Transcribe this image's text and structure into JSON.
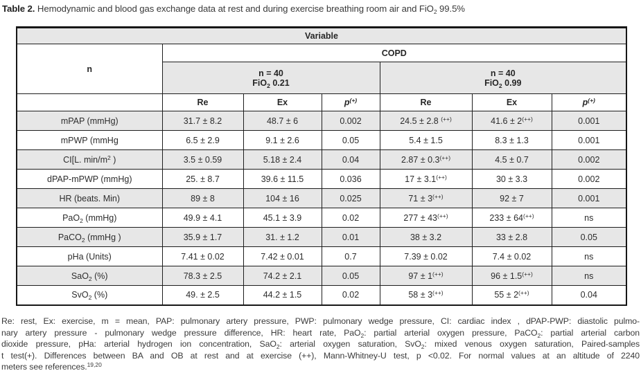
{
  "caption": {
    "label": "Table 2.",
    "text": "Hemodynamic and blood gas exchange data at rest and during exercise breathing room air and FiO~2~ 99.5%"
  },
  "table": {
    "variable_header": "Variable",
    "n_label": "n",
    "group_header": "COPD",
    "subgroups": [
      {
        "line1": "n = 40",
        "line2": "FiO~2~ 0.21"
      },
      {
        "line1": "n = 40",
        "line2": "FiO~2~ 0.99"
      }
    ],
    "col_headers": [
      "Re",
      "Ex",
      "p^(+)^",
      "Re",
      "Ex",
      "p^(+)^"
    ],
    "rows": [
      {
        "label": "mPAP (mmHg)",
        "cells": [
          "31.7 ± 8.2",
          "48.7 ± 6",
          "0.002",
          "24.5 ± 2.8 ^(++)^",
          "41.6 ± 2^(++)^",
          "0.001"
        ]
      },
      {
        "label": "mPWP (mmHg",
        "cells": [
          "6.5 ± 2.9",
          "9.1 ± 2.6",
          "0.05",
          "5.4 ± 1.5",
          "8.3 ± 1.3",
          "0.001"
        ]
      },
      {
        "label": "CI[L. min/m^2^ )",
        "cells": [
          "3.5 ± 0.59",
          "5.18 ± 2.4",
          "0.04",
          "2.87 ± 0.3^(++)^",
          "4.5 ± 0.7",
          "0.002"
        ]
      },
      {
        "label": "dPAP-mPWP (mmHg)",
        "cells": [
          "25. ± 8.7",
          "39.6 ± 11.5",
          "0.036",
          "17 ± 3.1^(++)^",
          "30 ± 3.3",
          "0.002"
        ]
      },
      {
        "label": "HR (beats. Min)",
        "cells": [
          "89 ± 8",
          "104 ± 16",
          "0.025",
          "71 ± 3^(++)^",
          "92 ± 7",
          "0.001"
        ]
      },
      {
        "label": "PaO~2~ (mmHg)",
        "cells": [
          "49.9 ± 4.1",
          "45.1 ± 3.9",
          "0.02",
          "277 ± 43^(++)^",
          "233 ± 64^(++)^",
          "ns"
        ]
      },
      {
        "label": "PaCO~2~ (mmHg )",
        "cells": [
          "35.9 ± 1.7",
          "31. ± 1.2",
          "0.01",
          "38 ± 3.2",
          "33 ± 2.8",
          "0.05"
        ]
      },
      {
        "label": "pHa (Units)",
        "cells": [
          "7.41 ± 0.02",
          "7.42 ± 0.01",
          "0.7",
          "7.39 ± 0.02",
          "7.4 ± 0.02",
          "ns"
        ]
      },
      {
        "label": "SaO~2~ (%)",
        "cells": [
          "78.3 ± 2.5",
          "74.2 ± 2.1",
          "0.05",
          "97 ± 1^(++)^",
          "96 ± 1.5^(++)^",
          "ns"
        ]
      },
      {
        "label": "SvO~2~ (%)",
        "cells": [
          "49. ± 2.5",
          "44.2 ± 1.5",
          "0.02",
          "58 ± 3^(++)^",
          "55 ± 2^(++)^",
          "0.04"
        ]
      }
    ]
  },
  "footnote": {
    "lines": [
      "Re: rest, Ex: exercise, m = mean, PAP: pulmonary artery pressure, PWP: pulmonary wedge pressure, CI: cardiac index , dPAP-PWP: diastolic pulmo-",
      "nary artery pressure - pulmonary wedge pressure difference, HR: heart rate, PaO~2~: partial arterial oxygen pressure, PaCO~2~: partial arterial carbon",
      "dioxide pressure, pHa: arterial hydrogen ion concentration, SaO~2~: arterial oxygen saturation, SvO~2~: mixed venous oxygen saturation, Paired-samples",
      "t test(+). Differences between BA and OB at rest and at exercise (++), Mann-Whitney-U test, p <0.02. For normal values at an altitude of 2240",
      "meters see references.^19,20^"
    ]
  },
  "colors": {
    "row_shade": "#e7e7e7",
    "border": "#1d1d1d",
    "text": "#2c2c2c",
    "background": "#ffffff"
  }
}
